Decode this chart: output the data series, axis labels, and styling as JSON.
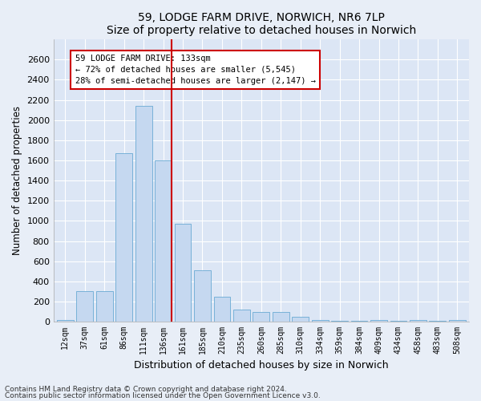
{
  "title": "59, LODGE FARM DRIVE, NORWICH, NR6 7LP",
  "subtitle": "Size of property relative to detached houses in Norwich",
  "xlabel": "Distribution of detached houses by size in Norwich",
  "ylabel": "Number of detached properties",
  "categories": [
    "12sqm",
    "37sqm",
    "61sqm",
    "86sqm",
    "111sqm",
    "136sqm",
    "161sqm",
    "185sqm",
    "210sqm",
    "235sqm",
    "260sqm",
    "285sqm",
    "310sqm",
    "334sqm",
    "359sqm",
    "384sqm",
    "409sqm",
    "434sqm",
    "458sqm",
    "483sqm",
    "508sqm"
  ],
  "values": [
    20,
    300,
    300,
    1670,
    2140,
    1600,
    970,
    510,
    245,
    120,
    95,
    95,
    45,
    20,
    10,
    5,
    15,
    5,
    20,
    5,
    20
  ],
  "bar_color": "#c5d8f0",
  "bar_edge_color": "#6aaad4",
  "vline_x_index": 5,
  "vline_color": "#cc0000",
  "annotation_text": "59 LODGE FARM DRIVE: 133sqm\n← 72% of detached houses are smaller (5,545)\n28% of semi-detached houses are larger (2,147) →",
  "annotation_box_color": "#ffffff",
  "annotation_box_edge": "#cc0000",
  "ylim": [
    0,
    2800
  ],
  "yticks": [
    0,
    200,
    400,
    600,
    800,
    1000,
    1200,
    1400,
    1600,
    1800,
    2000,
    2200,
    2400,
    2600
  ],
  "footnote1": "Contains HM Land Registry data © Crown copyright and database right 2024.",
  "footnote2": "Contains public sector information licensed under the Open Government Licence v3.0.",
  "bg_color": "#e8eef7",
  "plot_bg_color": "#dce6f5",
  "grid_color": "#ffffff"
}
